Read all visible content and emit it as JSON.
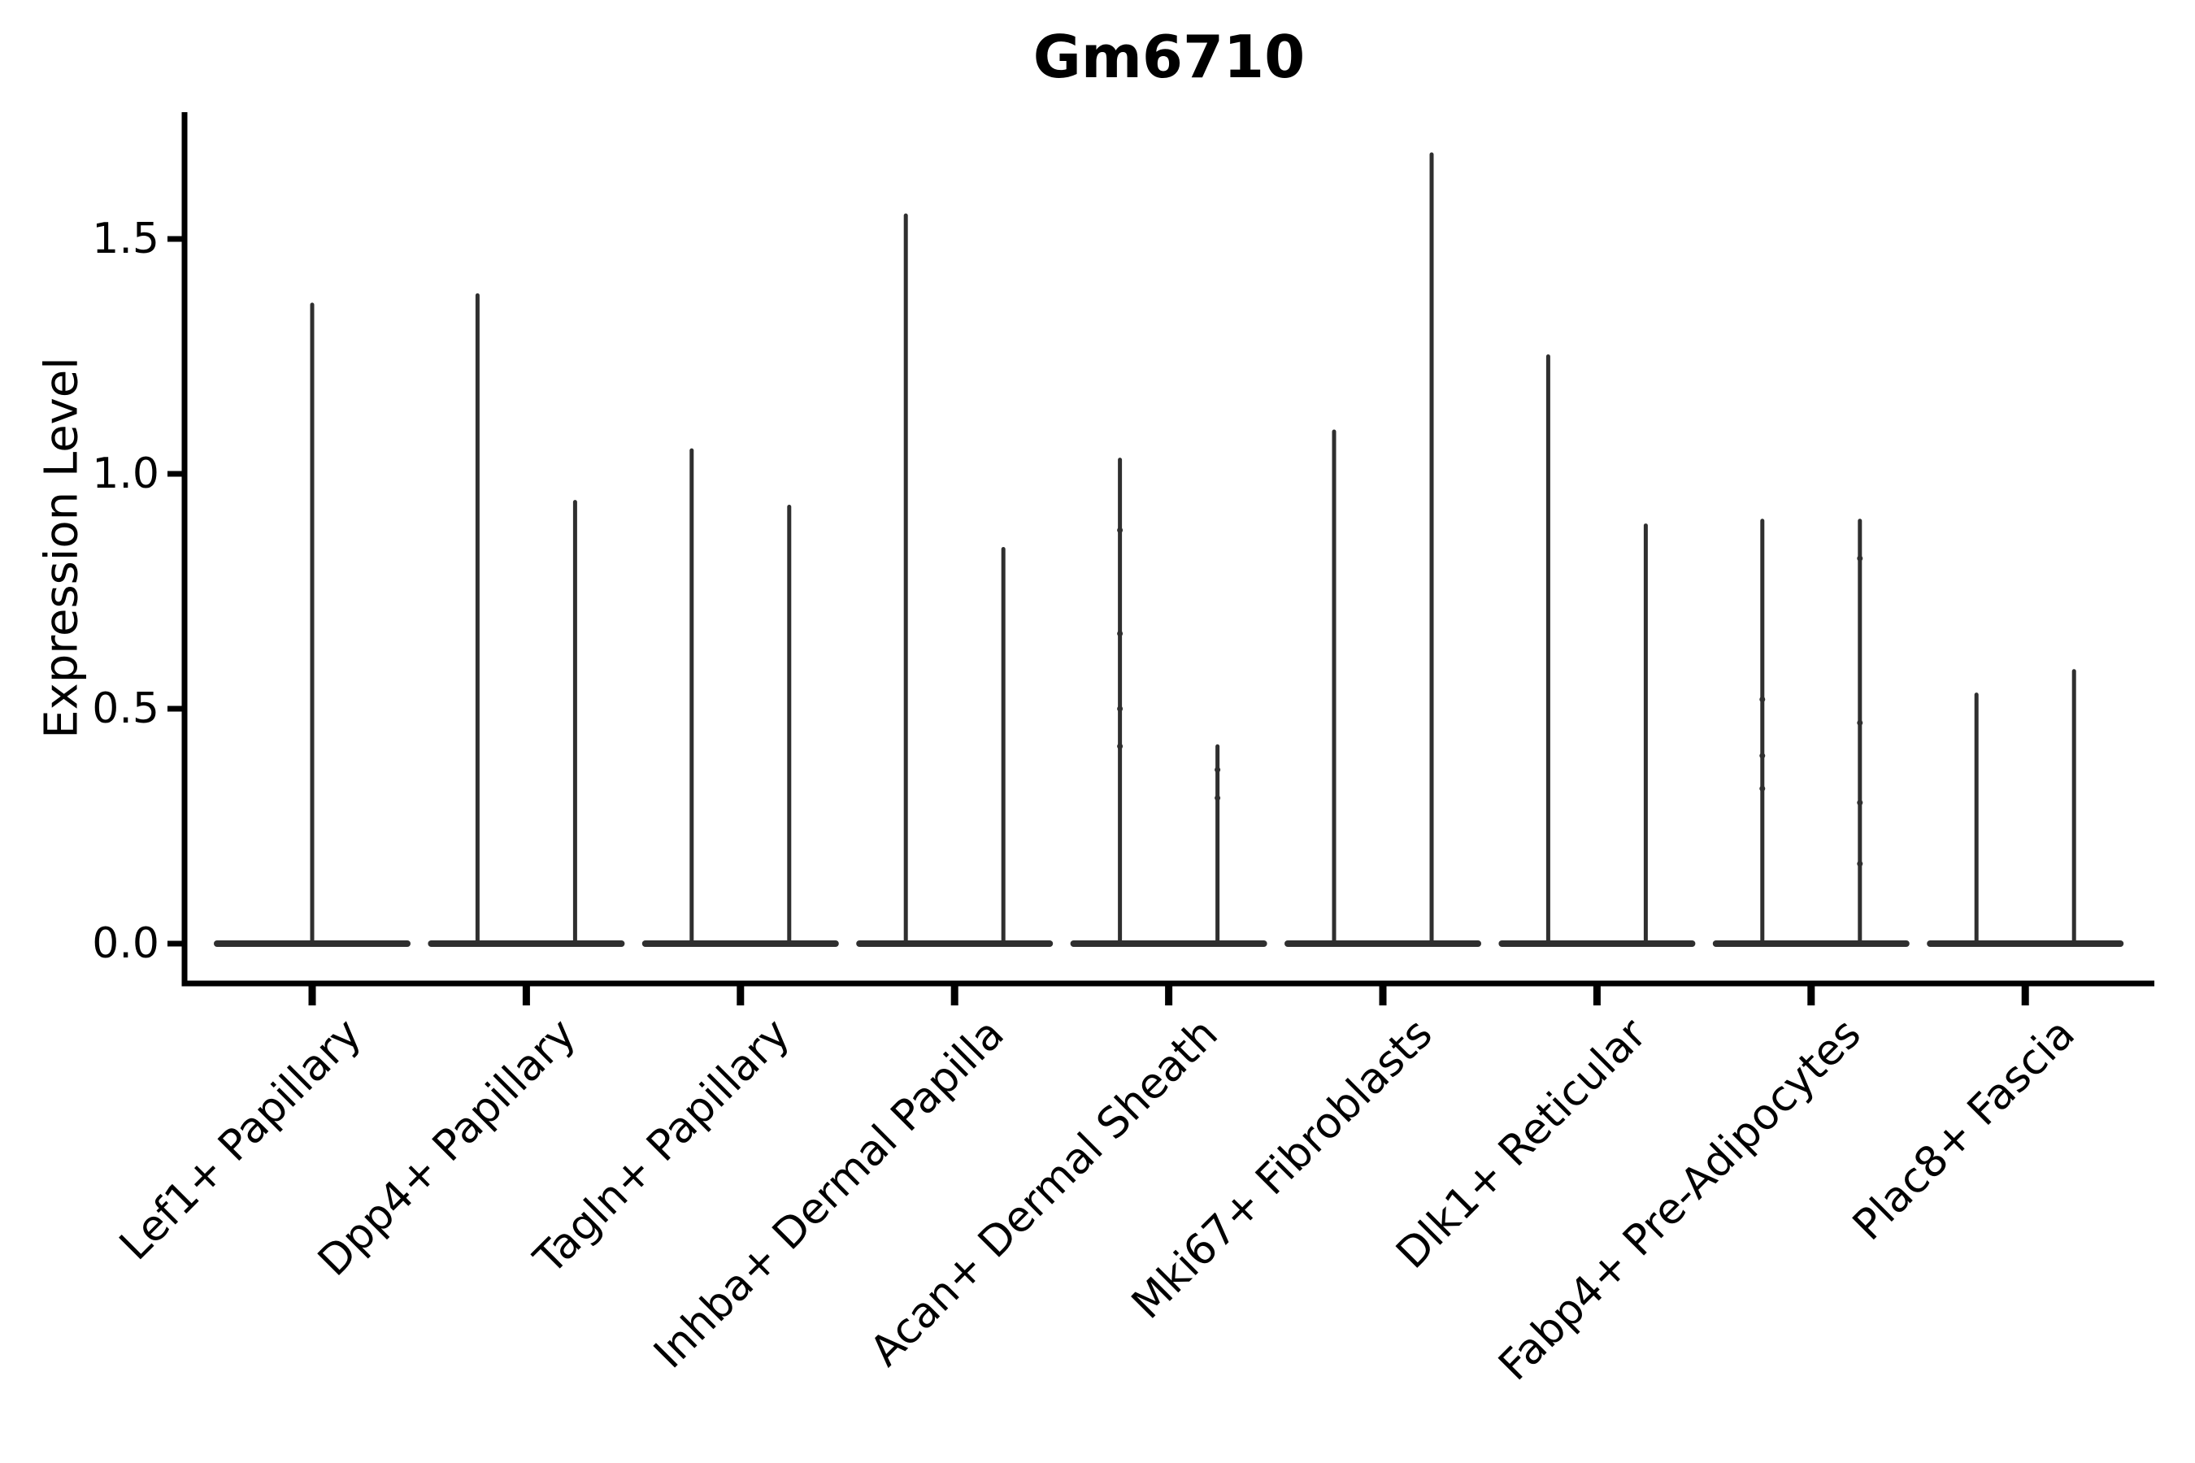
{
  "figure": {
    "title": "Gm6710",
    "ylabel": "Expression Level"
  },
  "chart_data": {
    "type": "violin",
    "title": "Gm6710",
    "xlabel": "",
    "ylabel": "Expression Level",
    "ylim": [
      0,
      1.77
    ],
    "yticks": [
      "0.0",
      "0.5",
      "1.0",
      "1.5"
    ],
    "grid": false,
    "legend": null,
    "violin_color": "#2f2f2f",
    "axis_color": "#000000",
    "categories": [
      "Lef1+ Papillary",
      "Dpp4+ Papillary",
      "Tagln+ Papillary",
      "Inhba+ Dermal Papilla",
      "Acan+ Dermal Sheath",
      "Mki67+ Fibroblasts",
      "Dlk1+ Reticular",
      "Fabp4+ Pre-Adipocytes",
      "Plac8+ Fascia"
    ],
    "series": [
      {
        "category": "Lef1+ Papillary",
        "violins": [
          {
            "position": "center",
            "max": 1.36,
            "points": []
          }
        ]
      },
      {
        "category": "Dpp4+ Papillary",
        "violins": [
          {
            "position": "left",
            "max": 1.38,
            "points": []
          },
          {
            "position": "right",
            "max": 0.94,
            "points": []
          }
        ]
      },
      {
        "category": "Tagln+ Papillary",
        "violins": [
          {
            "position": "left",
            "max": 1.05,
            "points": []
          },
          {
            "position": "right",
            "max": 0.93,
            "points": []
          }
        ]
      },
      {
        "category": "Inhba+ Dermal Papilla",
        "violins": [
          {
            "position": "left",
            "max": 1.55,
            "points": []
          },
          {
            "position": "right",
            "max": 0.84,
            "points": []
          }
        ]
      },
      {
        "category": "Acan+ Dermal Sheath",
        "violins": [
          {
            "position": "left",
            "max": 1.03,
            "points": [
              0.88,
              0.66,
              0.5,
              0.42
            ]
          },
          {
            "position": "right",
            "max": 0.42,
            "points": [
              0.37,
              0.31
            ]
          }
        ]
      },
      {
        "category": "Mki67+ Fibroblasts",
        "violins": [
          {
            "position": "left",
            "max": 1.09,
            "points": []
          },
          {
            "position": "right",
            "max": 1.68,
            "points": []
          }
        ]
      },
      {
        "category": "Dlk1+ Reticular",
        "violins": [
          {
            "position": "left",
            "max": 1.25,
            "points": []
          },
          {
            "position": "right",
            "max": 0.89,
            "points": []
          }
        ]
      },
      {
        "category": "Fabp4+ Pre-Adipocytes",
        "violins": [
          {
            "position": "left",
            "max": 0.9,
            "points": [
              0.52,
              0.4,
              0.33
            ]
          },
          {
            "position": "right",
            "max": 0.9,
            "points": [
              0.82,
              0.47,
              0.3,
              0.17
            ]
          }
        ]
      },
      {
        "category": "Plac8+ Fascia",
        "violins": [
          {
            "position": "left",
            "max": 0.53,
            "points": []
          },
          {
            "position": "right",
            "max": 0.58,
            "points": []
          }
        ]
      }
    ],
    "shape_note": "Each violin is collapsed: flat base at expression 0 with a thin spike rising to its max value"
  }
}
